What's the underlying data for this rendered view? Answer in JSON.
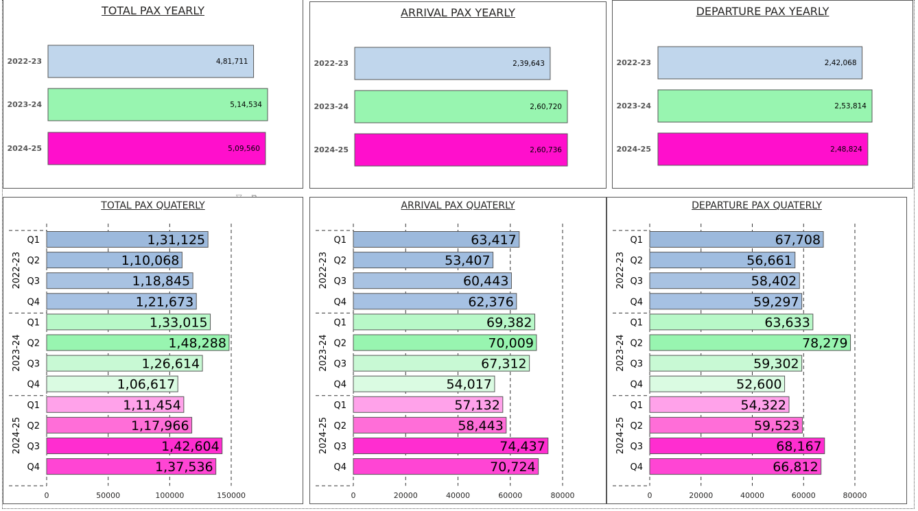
{
  "yearly_panels": {
    "total": {
      "title": "TOTAL PAX YEARLY"
    },
    "arrival": {
      "title": "ARRIVAL PAX YEARLY"
    },
    "departure": {
      "title": "DEPARTURE PAX YEARLY"
    }
  },
  "quarterly_panels": {
    "total": {
      "title": "TOTAL PAX QUATERLY"
    },
    "arrival": {
      "title": "ARRIVAL PAX QUATERLY"
    },
    "departure": {
      "title": "DEPARTURE PAX QUATERLY"
    }
  },
  "colors": {
    "year_2022_23": "#c0d6ec",
    "year_2023_24": "#98f5b0",
    "year_2024_25": "#ff0fcc",
    "quarter_fills": [
      [
        "#9cb9dc",
        "#a0bde0",
        "#a8c2e2",
        "#a6c1e3"
      ],
      [
        "#b8f8c8",
        "#98f5b0",
        "#c8f9d4",
        "#dafbe2"
      ],
      [
        "#ffa2ea",
        "#ff6ed8",
        "#ff2dd0",
        "#ff45d4"
      ]
    ],
    "bar_border": "#555555",
    "text": "#252423"
  },
  "chart_data": [
    {
      "type": "bar",
      "title": "TOTAL PAX YEARLY",
      "orientation": "horizontal",
      "categories": [
        "2022-23",
        "2023-24",
        "2024-25"
      ],
      "values": [
        481711,
        514534,
        509560
      ],
      "data_labels": [
        "4,81,711",
        "5,14,534",
        "5,09,560"
      ]
    },
    {
      "type": "bar",
      "title": "ARRIVAL PAX YEARLY",
      "orientation": "horizontal",
      "categories": [
        "2022-23",
        "2023-24",
        "2024-25"
      ],
      "values": [
        239643,
        260720,
        260736
      ],
      "data_labels": [
        "2,39,643",
        "2,60,720",
        "2,60,736"
      ]
    },
    {
      "type": "bar",
      "title": "DEPARTURE PAX YEARLY",
      "orientation": "horizontal",
      "categories": [
        "2022-23",
        "2023-24",
        "2024-25"
      ],
      "values": [
        242068,
        253814,
        248824
      ],
      "data_labels": [
        "2,42,068",
        "2,53,814",
        "2,48,824"
      ]
    },
    {
      "type": "bar",
      "title": "TOTAL PAX QUATERLY",
      "orientation": "horizontal",
      "groups": [
        "2022-23",
        "2023-24",
        "2024-25"
      ],
      "quarters": [
        "Q1",
        "Q2",
        "Q3",
        "Q4"
      ],
      "values": [
        [
          131125,
          110068,
          118845,
          121673
        ],
        [
          133015,
          148288,
          126614,
          106617
        ],
        [
          111454,
          117966,
          142604,
          137536
        ]
      ],
      "data_labels": [
        [
          "1,31,125",
          "1,10,068",
          "1,18,845",
          "1,21,673"
        ],
        [
          "1,33,015",
          "1,48,288",
          "1,26,614",
          "1,06,617"
        ],
        [
          "1,11,454",
          "1,17,966",
          "1,42,604",
          "1,37,536"
        ]
      ],
      "xlim": [
        0,
        150000
      ],
      "xticks": [
        0,
        50000,
        100000,
        150000
      ],
      "xtick_labels": [
        "0",
        "50000",
        "100000",
        "150000"
      ],
      "grid": true
    },
    {
      "type": "bar",
      "title": "ARRIVAL PAX QUATERLY",
      "orientation": "horizontal",
      "groups": [
        "2022-23",
        "2023-24",
        "2024-25"
      ],
      "quarters": [
        "Q1",
        "Q2",
        "Q3",
        "Q4"
      ],
      "values": [
        [
          63417,
          53407,
          60443,
          62376
        ],
        [
          69382,
          70009,
          67312,
          54017
        ],
        [
          57132,
          58443,
          74437,
          70724
        ]
      ],
      "data_labels": [
        [
          "63,417",
          "53,407",
          "60,443",
          "62,376"
        ],
        [
          "69,382",
          "70,009",
          "67,312",
          "54,017"
        ],
        [
          "57,132",
          "58,443",
          "74,437",
          "70,724"
        ]
      ],
      "xlim": [
        0,
        80000
      ],
      "xticks": [
        0,
        20000,
        40000,
        60000,
        80000
      ],
      "xtick_labels": [
        "0",
        "20000",
        "40000",
        "60000",
        "80000"
      ],
      "grid": true
    },
    {
      "type": "bar",
      "title": "DEPARTURE PAX QUATERLY",
      "orientation": "horizontal",
      "groups": [
        "2022-23",
        "2023-24",
        "2024-25"
      ],
      "quarters": [
        "Q1",
        "Q2",
        "Q3",
        "Q4"
      ],
      "values": [
        [
          67708,
          56661,
          58402,
          59297
        ],
        [
          63633,
          78279,
          59302,
          52600
        ],
        [
          54322,
          59523,
          68167,
          66812
        ]
      ],
      "data_labels": [
        [
          "67,708",
          "56,661",
          "58,402",
          "59,297"
        ],
        [
          "63,633",
          "78,279",
          "59,302",
          "52,600"
        ],
        [
          "54,322",
          "59,523",
          "68,167",
          "66,812"
        ]
      ],
      "xlim": [
        0,
        80000
      ],
      "xticks": [
        0,
        20000,
        40000,
        60000,
        80000
      ],
      "xtick_labels": [
        "0",
        "20000",
        "40000",
        "60000",
        "80000"
      ],
      "grid": true
    }
  ]
}
